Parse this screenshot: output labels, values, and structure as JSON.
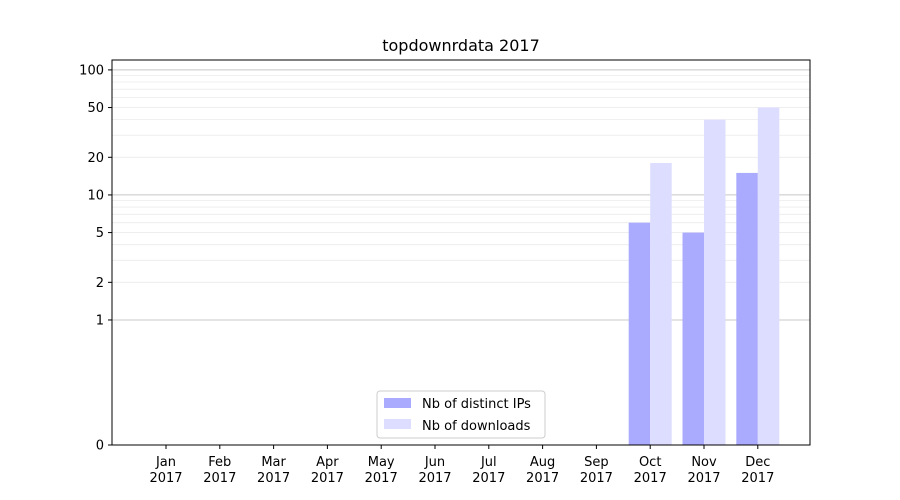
{
  "chart_data": {
    "type": "bar",
    "title": "topdownrdata 2017",
    "xlabel": "",
    "ylabel": "",
    "yscale": "symlog",
    "ylim": [
      0,
      120
    ],
    "grid": "y-major-and-minor",
    "legend_position": "bottom-center",
    "categories": [
      {
        "month": "Jan",
        "year": "2017"
      },
      {
        "month": "Feb",
        "year": "2017"
      },
      {
        "month": "Mar",
        "year": "2017"
      },
      {
        "month": "Apr",
        "year": "2017"
      },
      {
        "month": "May",
        "year": "2017"
      },
      {
        "month": "Jun",
        "year": "2017"
      },
      {
        "month": "Jul",
        "year": "2017"
      },
      {
        "month": "Aug",
        "year": "2017"
      },
      {
        "month": "Sep",
        "year": "2017"
      },
      {
        "month": "Oct",
        "year": "2017"
      },
      {
        "month": "Nov",
        "year": "2017"
      },
      {
        "month": "Dec",
        "year": "2017"
      }
    ],
    "yticks": [
      {
        "value": 0,
        "label": "0"
      },
      {
        "value": 1,
        "label": "1"
      },
      {
        "value": 2,
        "label": "2"
      },
      {
        "value": 5,
        "label": "5"
      },
      {
        "value": 10,
        "label": "10"
      },
      {
        "value": 20,
        "label": "20"
      },
      {
        "value": 50,
        "label": "50"
      },
      {
        "value": 100,
        "label": "100"
      }
    ],
    "series": [
      {
        "name": "Nb of distinct IPs",
        "color": "#aaaaff",
        "values": [
          0,
          0,
          0,
          0,
          0,
          0,
          0,
          0,
          0,
          6,
          5,
          15
        ]
      },
      {
        "name": "Nb of downloads",
        "color": "#ddddff",
        "values": [
          0,
          0,
          0,
          0,
          0,
          0,
          0,
          0,
          0,
          18,
          40,
          50
        ]
      }
    ]
  }
}
